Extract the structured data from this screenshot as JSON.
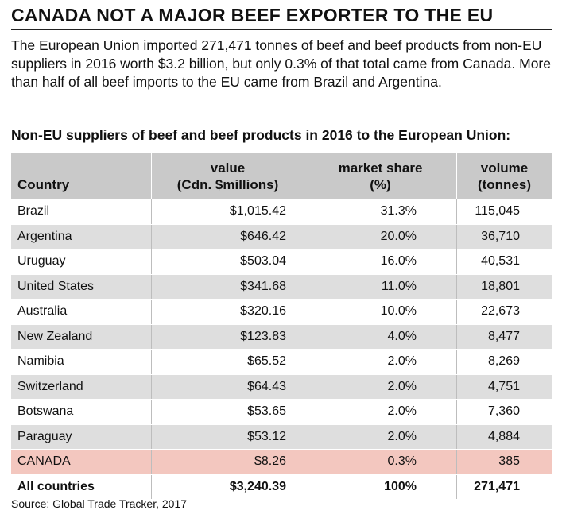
{
  "title": "CANADA NOT A MAJOR BEEF EXPORTER TO THE EU",
  "intro": "The European Union imported 271,471 tonnes of beef and beef products from non-EU suppliers in 2016 worth $3.2 billion, but only 0.3% of that total came from Canada. More than half of all beef imports to the EU came from Brazil and Argentina.",
  "subtitle": "Non-EU suppliers of beef and beef products in 2016 to the European Union:",
  "source": "Source: Global Trade Tracker, 2017",
  "colors": {
    "header_bg": "#c9c9c9",
    "stripe": "#dedede",
    "highlight": "#f3c7bf"
  },
  "chart_data": {
    "type": "table",
    "columns": [
      {
        "line1": "",
        "line2": "Country"
      },
      {
        "line1": "value",
        "line2": "(Cdn. $millions)"
      },
      {
        "line1": "market share",
        "line2": "(%)"
      },
      {
        "line1": "volume",
        "line2": "(tonnes)"
      }
    ],
    "rows": [
      {
        "country": "Brazil",
        "value": "$1,015.42",
        "share": "31.3%",
        "volume": "115,045"
      },
      {
        "country": "Argentina",
        "value": "$646.42",
        "share": "20.0%",
        "volume": "36,710"
      },
      {
        "country": "Uruguay",
        "value": "$503.04",
        "share": "16.0%",
        "volume": "40,531"
      },
      {
        "country": "United States",
        "value": "$341.68",
        "share": "11.0%",
        "volume": "18,801"
      },
      {
        "country": "Australia",
        "value": "$320.16",
        "share": "10.0%",
        "volume": "22,673"
      },
      {
        "country": "New Zealand",
        "value": "$123.83",
        "share": "4.0%",
        "volume": "8,477"
      },
      {
        "country": "Namibia",
        "value": "$65.52",
        "share": "2.0%",
        "volume": "8,269"
      },
      {
        "country": "Switzerland",
        "value": "$64.43",
        "share": "2.0%",
        "volume": "4,751"
      },
      {
        "country": "Botswana",
        "value": "$53.65",
        "share": "2.0%",
        "volume": "7,360"
      },
      {
        "country": "Paraguay",
        "value": "$53.12",
        "share": "2.0%",
        "volume": "4,884"
      },
      {
        "country": "CANADA",
        "value": "$8.26",
        "share": "0.3%",
        "volume": "385",
        "highlight": true
      }
    ],
    "total": {
      "country": "All countries",
      "value": "$3,240.39",
      "share": "100%",
      "volume": "271,471"
    }
  }
}
